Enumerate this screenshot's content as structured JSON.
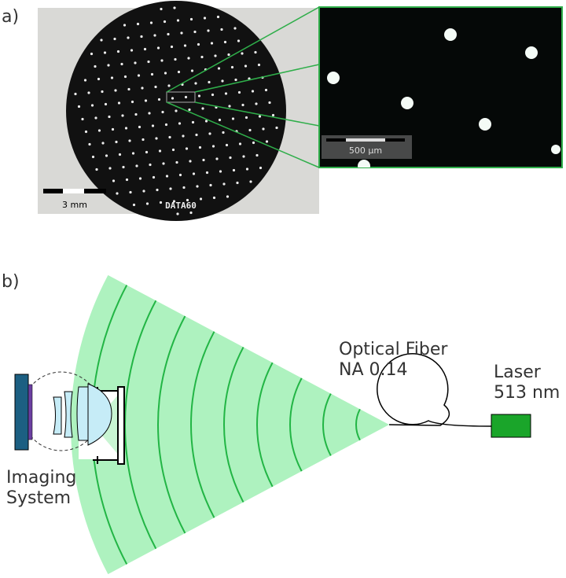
{
  "panel_a": {
    "label": "a)",
    "scale_left": "3 mm",
    "scale_right": "500 µm",
    "chip_text": "DATA60"
  },
  "panel_b": {
    "label": "b)",
    "fiber_label": "Optical Fiber",
    "fiber_na": "NA 0.14",
    "laser_label": "Laser",
    "laser_wavelength": "513 nm",
    "imaging_label": "Imaging",
    "imaging_label2": "System"
  }
}
